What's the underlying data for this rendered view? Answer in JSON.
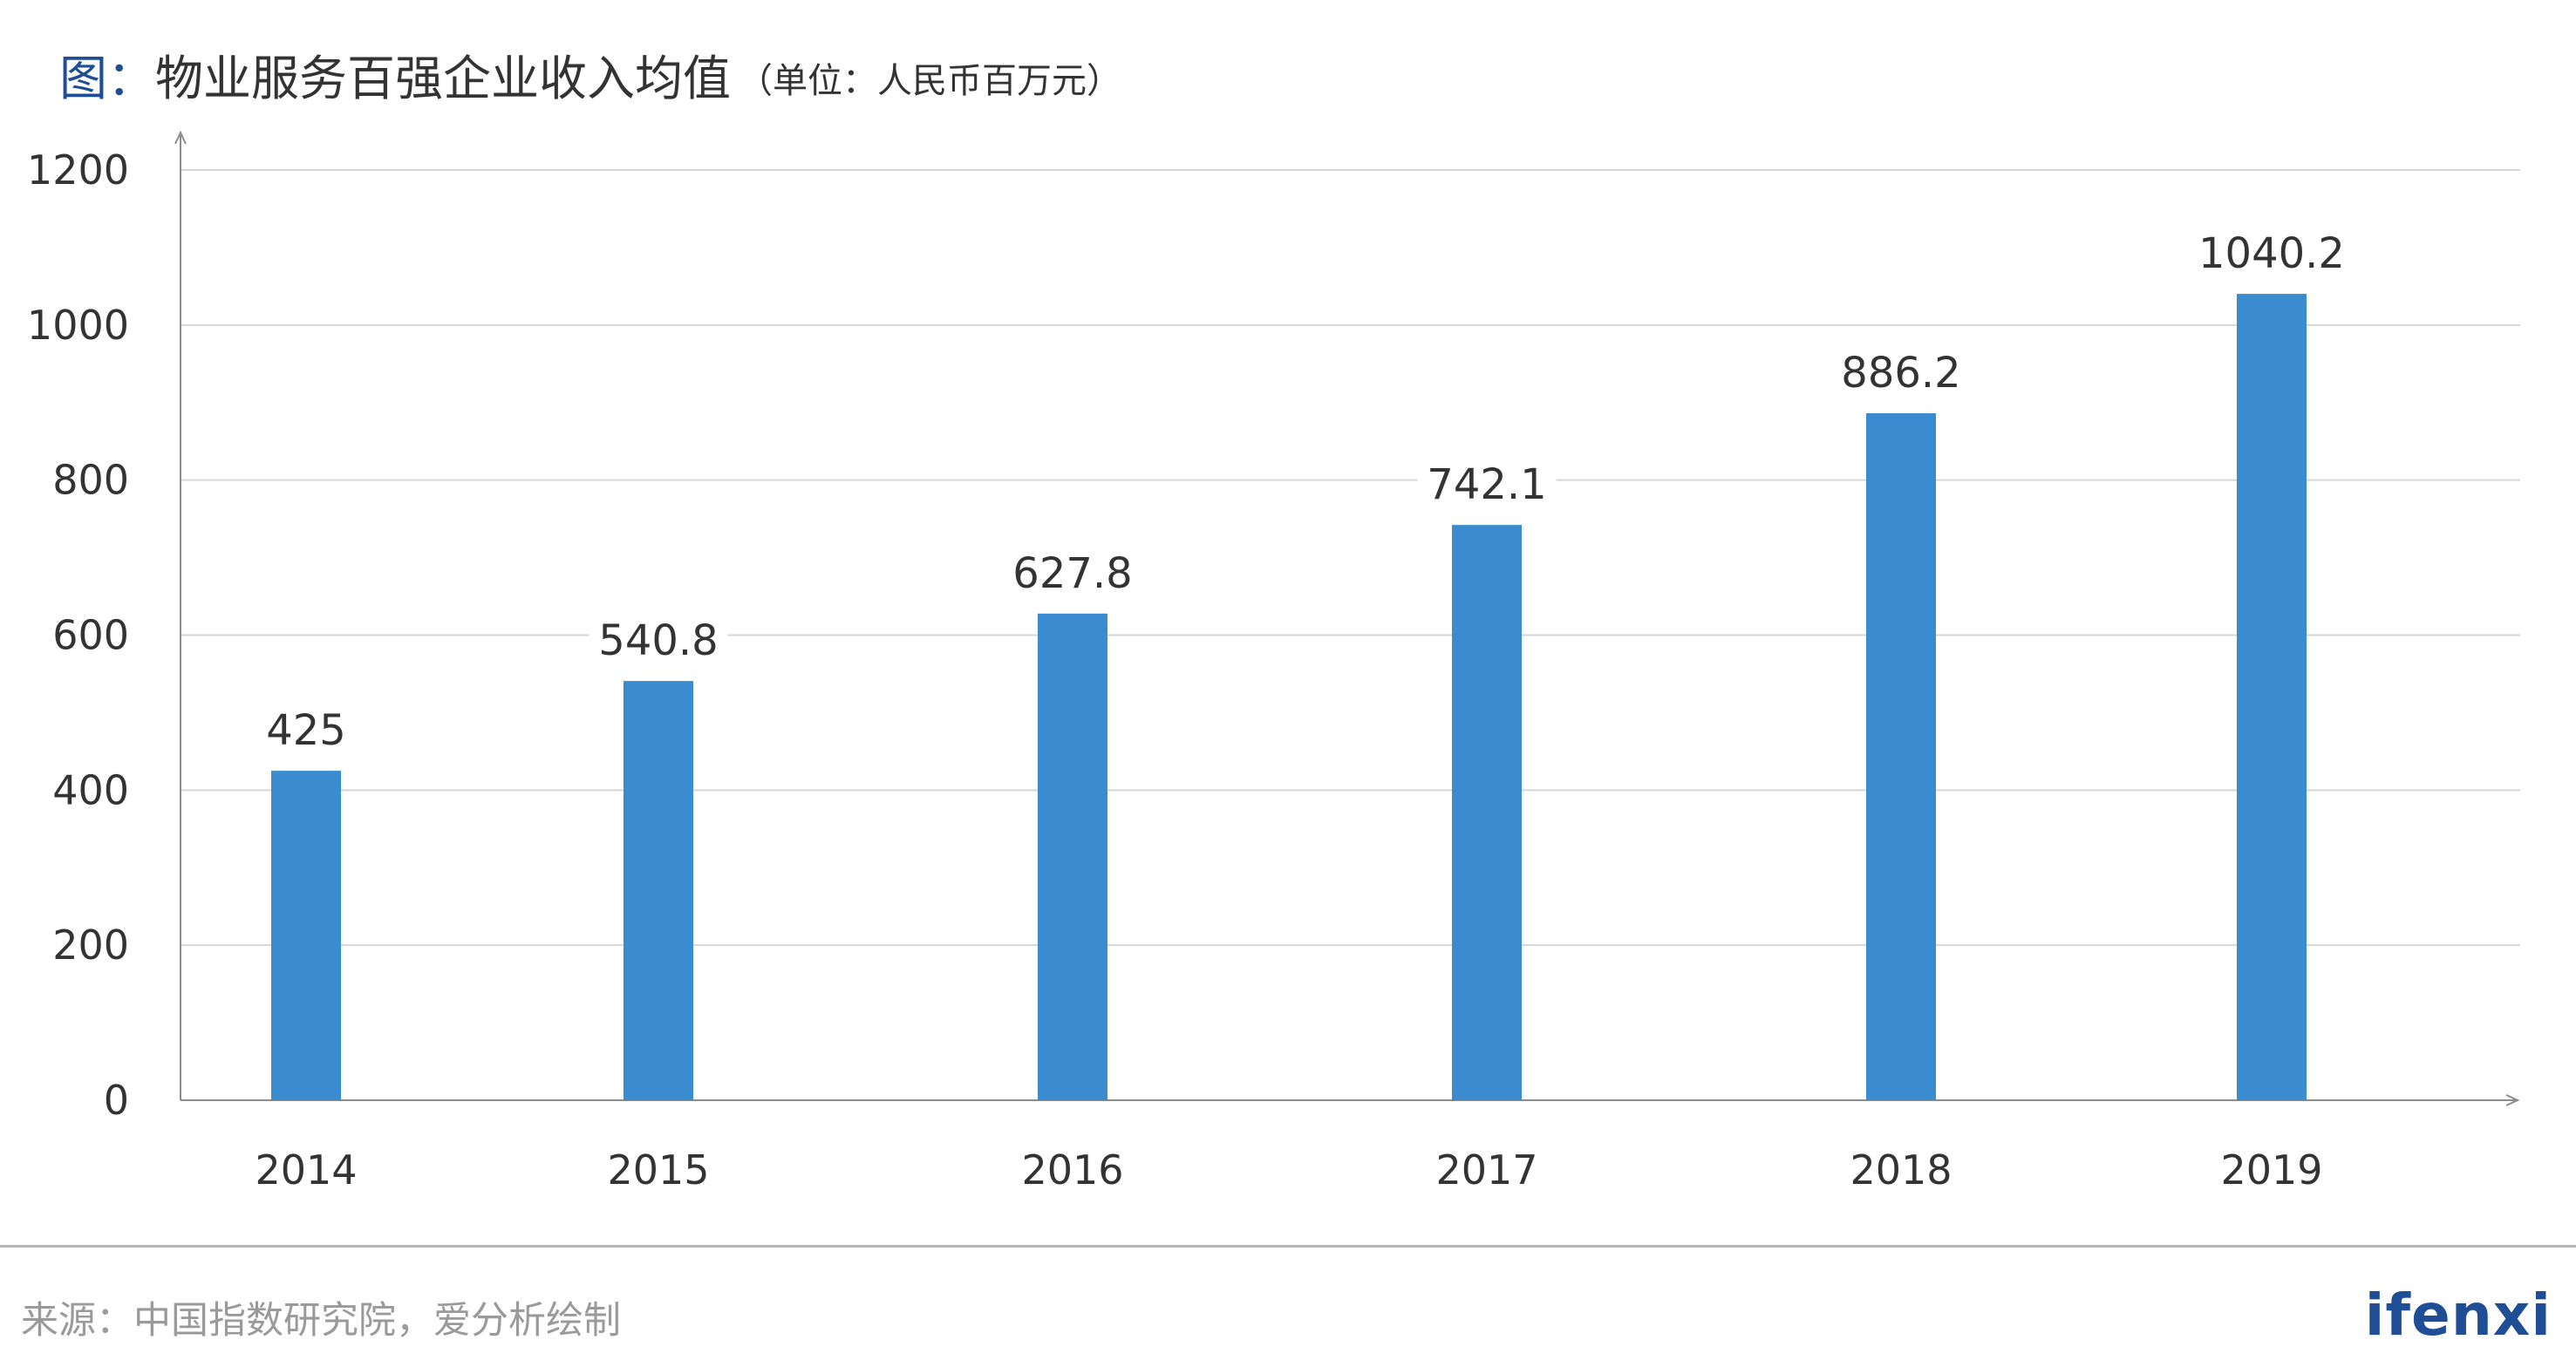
{
  "title": {
    "prefix": "图：",
    "main": "物业服务百强企业收入均值",
    "unit": "（单位：人民币百万元）"
  },
  "chart_data": {
    "type": "bar",
    "categories": [
      "2014",
      "2015",
      "2016",
      "2017",
      "2018",
      "2019"
    ],
    "values": [
      425,
      540.8,
      627.8,
      742.1,
      886.2,
      1040.2
    ],
    "data_labels": [
      "425",
      "540.8",
      "627.8",
      "742.1",
      "886.2",
      "1040.2"
    ],
    "yticks": [
      "0",
      "200",
      "400",
      "600",
      "800",
      "1000",
      "1200"
    ],
    "ylim": [
      0,
      1200
    ],
    "grid": true,
    "legend": "none",
    "bar_color": "#3a8bd0"
  },
  "footer": {
    "source": "来源：中国指数研究院，爱分析绘制",
    "logo": "ifenxi"
  },
  "colors": {
    "title_accent": "#1f4e96",
    "grid": "#d6d6d6",
    "axis": "#8c8c8c",
    "text": "#333333",
    "source": "#9a9a9a"
  }
}
